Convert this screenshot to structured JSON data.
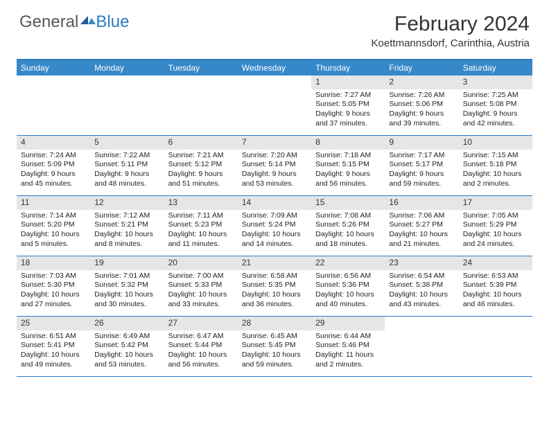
{
  "brand": {
    "part1": "General",
    "part2": "Blue"
  },
  "title": "February 2024",
  "location": "Koettmannsdorf, Carinthia, Austria",
  "colors": {
    "accent": "#3788c9",
    "border": "#2c7bc4",
    "daybar": "#e6e6e6",
    "bg": "#ffffff"
  },
  "weekdays": [
    "Sunday",
    "Monday",
    "Tuesday",
    "Wednesday",
    "Thursday",
    "Friday",
    "Saturday"
  ],
  "weeks": [
    [
      null,
      null,
      null,
      null,
      {
        "n": "1",
        "sr": "Sunrise: 7:27 AM",
        "ss": "Sunset: 5:05 PM",
        "d1": "Daylight: 9 hours",
        "d2": "and 37 minutes."
      },
      {
        "n": "2",
        "sr": "Sunrise: 7:26 AM",
        "ss": "Sunset: 5:06 PM",
        "d1": "Daylight: 9 hours",
        "d2": "and 39 minutes."
      },
      {
        "n": "3",
        "sr": "Sunrise: 7:25 AM",
        "ss": "Sunset: 5:08 PM",
        "d1": "Daylight: 9 hours",
        "d2": "and 42 minutes."
      }
    ],
    [
      {
        "n": "4",
        "sr": "Sunrise: 7:24 AM",
        "ss": "Sunset: 5:09 PM",
        "d1": "Daylight: 9 hours",
        "d2": "and 45 minutes."
      },
      {
        "n": "5",
        "sr": "Sunrise: 7:22 AM",
        "ss": "Sunset: 5:11 PM",
        "d1": "Daylight: 9 hours",
        "d2": "and 48 minutes."
      },
      {
        "n": "6",
        "sr": "Sunrise: 7:21 AM",
        "ss": "Sunset: 5:12 PM",
        "d1": "Daylight: 9 hours",
        "d2": "and 51 minutes."
      },
      {
        "n": "7",
        "sr": "Sunrise: 7:20 AM",
        "ss": "Sunset: 5:14 PM",
        "d1": "Daylight: 9 hours",
        "d2": "and 53 minutes."
      },
      {
        "n": "8",
        "sr": "Sunrise: 7:18 AM",
        "ss": "Sunset: 5:15 PM",
        "d1": "Daylight: 9 hours",
        "d2": "and 56 minutes."
      },
      {
        "n": "9",
        "sr": "Sunrise: 7:17 AM",
        "ss": "Sunset: 5:17 PM",
        "d1": "Daylight: 9 hours",
        "d2": "and 59 minutes."
      },
      {
        "n": "10",
        "sr": "Sunrise: 7:15 AM",
        "ss": "Sunset: 5:18 PM",
        "d1": "Daylight: 10 hours",
        "d2": "and 2 minutes."
      }
    ],
    [
      {
        "n": "11",
        "sr": "Sunrise: 7:14 AM",
        "ss": "Sunset: 5:20 PM",
        "d1": "Daylight: 10 hours",
        "d2": "and 5 minutes."
      },
      {
        "n": "12",
        "sr": "Sunrise: 7:12 AM",
        "ss": "Sunset: 5:21 PM",
        "d1": "Daylight: 10 hours",
        "d2": "and 8 minutes."
      },
      {
        "n": "13",
        "sr": "Sunrise: 7:11 AM",
        "ss": "Sunset: 5:23 PM",
        "d1": "Daylight: 10 hours",
        "d2": "and 11 minutes."
      },
      {
        "n": "14",
        "sr": "Sunrise: 7:09 AM",
        "ss": "Sunset: 5:24 PM",
        "d1": "Daylight: 10 hours",
        "d2": "and 14 minutes."
      },
      {
        "n": "15",
        "sr": "Sunrise: 7:08 AM",
        "ss": "Sunset: 5:26 PM",
        "d1": "Daylight: 10 hours",
        "d2": "and 18 minutes."
      },
      {
        "n": "16",
        "sr": "Sunrise: 7:06 AM",
        "ss": "Sunset: 5:27 PM",
        "d1": "Daylight: 10 hours",
        "d2": "and 21 minutes."
      },
      {
        "n": "17",
        "sr": "Sunrise: 7:05 AM",
        "ss": "Sunset: 5:29 PM",
        "d1": "Daylight: 10 hours",
        "d2": "and 24 minutes."
      }
    ],
    [
      {
        "n": "18",
        "sr": "Sunrise: 7:03 AM",
        "ss": "Sunset: 5:30 PM",
        "d1": "Daylight: 10 hours",
        "d2": "and 27 minutes."
      },
      {
        "n": "19",
        "sr": "Sunrise: 7:01 AM",
        "ss": "Sunset: 5:32 PM",
        "d1": "Daylight: 10 hours",
        "d2": "and 30 minutes."
      },
      {
        "n": "20",
        "sr": "Sunrise: 7:00 AM",
        "ss": "Sunset: 5:33 PM",
        "d1": "Daylight: 10 hours",
        "d2": "and 33 minutes."
      },
      {
        "n": "21",
        "sr": "Sunrise: 6:58 AM",
        "ss": "Sunset: 5:35 PM",
        "d1": "Daylight: 10 hours",
        "d2": "and 36 minutes."
      },
      {
        "n": "22",
        "sr": "Sunrise: 6:56 AM",
        "ss": "Sunset: 5:36 PM",
        "d1": "Daylight: 10 hours",
        "d2": "and 40 minutes."
      },
      {
        "n": "23",
        "sr": "Sunrise: 6:54 AM",
        "ss": "Sunset: 5:38 PM",
        "d1": "Daylight: 10 hours",
        "d2": "and 43 minutes."
      },
      {
        "n": "24",
        "sr": "Sunrise: 6:53 AM",
        "ss": "Sunset: 5:39 PM",
        "d1": "Daylight: 10 hours",
        "d2": "and 46 minutes."
      }
    ],
    [
      {
        "n": "25",
        "sr": "Sunrise: 6:51 AM",
        "ss": "Sunset: 5:41 PM",
        "d1": "Daylight: 10 hours",
        "d2": "and 49 minutes."
      },
      {
        "n": "26",
        "sr": "Sunrise: 6:49 AM",
        "ss": "Sunset: 5:42 PM",
        "d1": "Daylight: 10 hours",
        "d2": "and 53 minutes."
      },
      {
        "n": "27",
        "sr": "Sunrise: 6:47 AM",
        "ss": "Sunset: 5:44 PM",
        "d1": "Daylight: 10 hours",
        "d2": "and 56 minutes."
      },
      {
        "n": "28",
        "sr": "Sunrise: 6:45 AM",
        "ss": "Sunset: 5:45 PM",
        "d1": "Daylight: 10 hours",
        "d2": "and 59 minutes."
      },
      {
        "n": "29",
        "sr": "Sunrise: 6:44 AM",
        "ss": "Sunset: 5:46 PM",
        "d1": "Daylight: 11 hours",
        "d2": "and 2 minutes."
      },
      null,
      null
    ]
  ]
}
